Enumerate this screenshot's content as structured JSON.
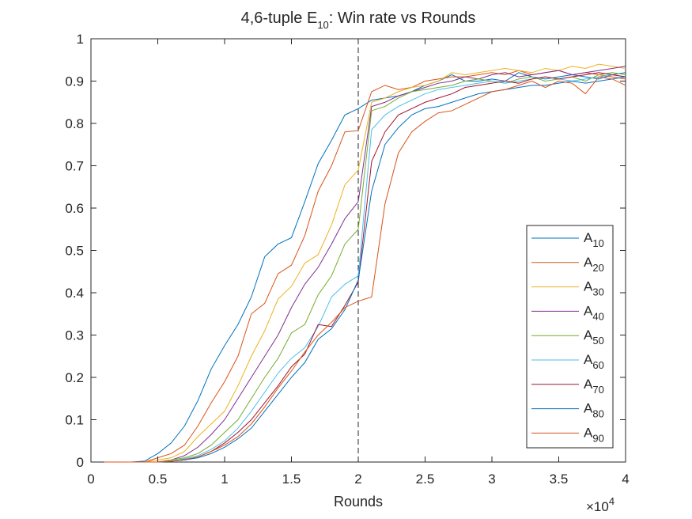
{
  "chart_data": {
    "type": "line",
    "title_prefix": "4,6-tuple E",
    "title_subscript": "10",
    "title_suffix": ": Win rate vs Rounds",
    "xlabel": "Rounds",
    "ylabel": "",
    "x_exponent_label": "×10",
    "x_exponent_power": "4",
    "xlim": [
      0,
      40000
    ],
    "ylim": [
      0,
      1
    ],
    "x_ticks": [
      0,
      5000,
      10000,
      15000,
      20000,
      25000,
      30000,
      35000,
      40000
    ],
    "x_tick_labels": [
      "0",
      "0.5",
      "1",
      "1.5",
      "2",
      "2.5",
      "3",
      "3.5",
      "4"
    ],
    "y_ticks": [
      0,
      0.1,
      0.2,
      0.3,
      0.4,
      0.5,
      0.6,
      0.7,
      0.8,
      0.9,
      1
    ],
    "y_tick_labels": [
      "0",
      "0.1",
      "0.2",
      "0.3",
      "0.4",
      "0.5",
      "0.6",
      "0.7",
      "0.8",
      "0.9",
      "1"
    ],
    "grid": false,
    "reference_line": {
      "x": 20000,
      "style": "dashed"
    },
    "legend_position": "lower-right",
    "x": [
      1000,
      2000,
      3000,
      4000,
      5000,
      6000,
      7000,
      8000,
      9000,
      10000,
      11000,
      12000,
      13000,
      14000,
      15000,
      16000,
      17000,
      18000,
      19000,
      20000,
      21000,
      22000,
      23000,
      24000,
      25000,
      26000,
      27000,
      28000,
      29000,
      30000,
      31000,
      32000,
      33000,
      34000,
      35000,
      36000,
      37000,
      38000,
      39000,
      40000
    ],
    "series": [
      {
        "name": "A",
        "sub": "10",
        "color": "#0072BD",
        "values": [
          0,
          0,
          0,
          0.002,
          0.02,
          0.045,
          0.085,
          0.145,
          0.22,
          0.275,
          0.325,
          0.39,
          0.485,
          0.515,
          0.53,
          0.615,
          0.705,
          0.76,
          0.82,
          0.835,
          0.855,
          0.86,
          0.865,
          0.875,
          0.89,
          0.9,
          0.915,
          0.9,
          0.9,
          0.905,
          0.9,
          0.92,
          0.91,
          0.905,
          0.91,
          0.915,
          0.91,
          0.905,
          0.915,
          0.92
        ]
      },
      {
        "name": "A",
        "sub": "20",
        "color": "#D95319",
        "values": [
          0,
          0,
          0,
          0,
          0.01,
          0.02,
          0.04,
          0.085,
          0.14,
          0.19,
          0.25,
          0.35,
          0.375,
          0.445,
          0.465,
          0.535,
          0.64,
          0.7,
          0.78,
          0.783,
          0.875,
          0.89,
          0.88,
          0.885,
          0.9,
          0.905,
          0.91,
          0.91,
          0.915,
          0.92,
          0.915,
          0.925,
          0.915,
          0.92,
          0.925,
          0.915,
          0.92,
          0.915,
          0.91,
          0.905
        ]
      },
      {
        "name": "A",
        "sub": "30",
        "color": "#EDB120",
        "values": [
          0,
          0,
          0,
          0,
          0.005,
          0.01,
          0.025,
          0.06,
          0.09,
          0.12,
          0.18,
          0.25,
          0.31,
          0.385,
          0.415,
          0.47,
          0.49,
          0.56,
          0.655,
          0.69,
          0.85,
          0.86,
          0.875,
          0.885,
          0.89,
          0.9,
          0.92,
          0.915,
          0.92,
          0.925,
          0.93,
          0.925,
          0.92,
          0.93,
          0.925,
          0.935,
          0.93,
          0.94,
          0.935,
          0.93
        ]
      },
      {
        "name": "A",
        "sub": "40",
        "color": "#7E2F8E",
        "values": [
          0,
          0,
          0,
          0,
          0,
          0.005,
          0.015,
          0.035,
          0.065,
          0.1,
          0.15,
          0.2,
          0.25,
          0.3,
          0.365,
          0.42,
          0.46,
          0.515,
          0.575,
          0.615,
          0.84,
          0.85,
          0.865,
          0.875,
          0.885,
          0.895,
          0.9,
          0.91,
          0.905,
          0.915,
          0.92,
          0.91,
          0.915,
          0.92,
          0.925,
          0.915,
          0.92,
          0.925,
          0.93,
          0.935
        ]
      },
      {
        "name": "A",
        "sub": "50",
        "color": "#77AC30",
        "values": [
          0,
          0,
          0,
          0,
          0,
          0.005,
          0.01,
          0.02,
          0.04,
          0.07,
          0.1,
          0.15,
          0.2,
          0.245,
          0.305,
          0.325,
          0.395,
          0.44,
          0.515,
          0.55,
          0.83,
          0.84,
          0.86,
          0.875,
          0.88,
          0.885,
          0.89,
          0.9,
          0.905,
          0.9,
          0.895,
          0.905,
          0.91,
          0.9,
          0.905,
          0.91,
          0.9,
          0.915,
          0.92,
          0.915
        ]
      },
      {
        "name": "A",
        "sub": "60",
        "color": "#4DBEEE",
        "values": [
          0,
          0,
          0,
          0,
          0,
          0.002,
          0.008,
          0.015,
          0.03,
          0.05,
          0.08,
          0.12,
          0.165,
          0.21,
          0.245,
          0.27,
          0.32,
          0.39,
          0.42,
          0.44,
          0.785,
          0.82,
          0.84,
          0.855,
          0.87,
          0.88,
          0.885,
          0.89,
          0.895,
          0.9,
          0.895,
          0.9,
          0.905,
          0.91,
          0.905,
          0.9,
          0.905,
          0.91,
          0.915,
          0.91
        ]
      },
      {
        "name": "A",
        "sub": "70",
        "color": "#A2142F",
        "values": [
          0,
          0,
          0,
          0,
          0,
          0.002,
          0.005,
          0.012,
          0.025,
          0.045,
          0.07,
          0.1,
          0.14,
          0.18,
          0.225,
          0.255,
          0.325,
          0.32,
          0.37,
          0.425,
          0.71,
          0.78,
          0.82,
          0.835,
          0.85,
          0.86,
          0.87,
          0.885,
          0.89,
          0.895,
          0.9,
          0.895,
          0.905,
          0.91,
          0.905,
          0.91,
          0.915,
          0.92,
          0.915,
          0.91
        ]
      },
      {
        "name": "A",
        "sub": "80",
        "color": "#0072BD",
        "values": [
          0,
          0,
          0,
          0,
          0,
          0.002,
          0.005,
          0.01,
          0.02,
          0.035,
          0.055,
          0.08,
          0.12,
          0.16,
          0.2,
          0.235,
          0.29,
          0.315,
          0.36,
          0.43,
          0.64,
          0.75,
          0.79,
          0.82,
          0.835,
          0.84,
          0.85,
          0.86,
          0.87,
          0.875,
          0.88,
          0.885,
          0.89,
          0.89,
          0.895,
          0.9,
          0.895,
          0.9,
          0.905,
          0.91
        ]
      },
      {
        "name": "A",
        "sub": "90",
        "color": "#D95319",
        "values": [
          0,
          0,
          0,
          0,
          0,
          0.002,
          0.006,
          0.012,
          0.025,
          0.04,
          0.06,
          0.09,
          0.13,
          0.175,
          0.215,
          0.26,
          0.3,
          0.33,
          0.365,
          0.38,
          0.39,
          0.61,
          0.73,
          0.78,
          0.805,
          0.825,
          0.83,
          0.845,
          0.86,
          0.875,
          0.88,
          0.89,
          0.9,
          0.885,
          0.9,
          0.895,
          0.87,
          0.91,
          0.905,
          0.89
        ]
      }
    ]
  }
}
